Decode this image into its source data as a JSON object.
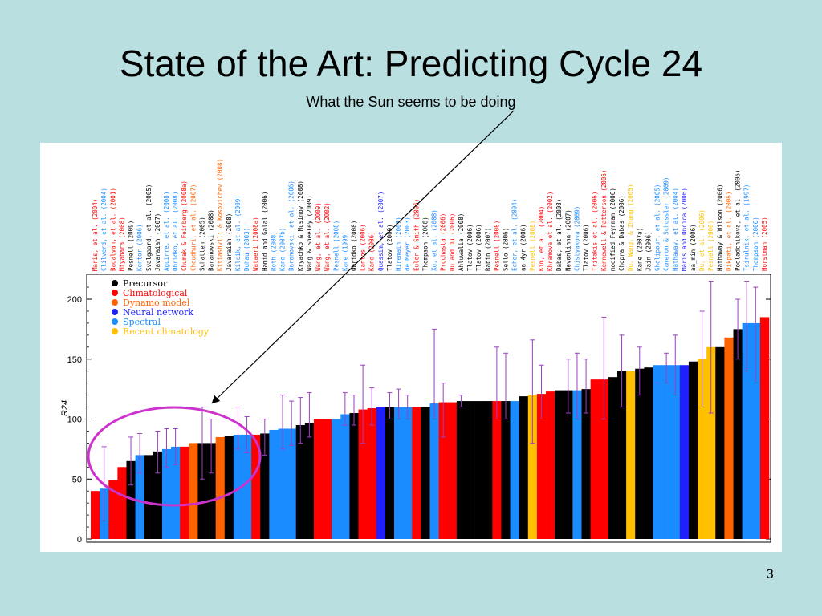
{
  "slide": {
    "title": "State of the Art: Predicting Cycle 24",
    "subtitle": "What the Sun seems to be doing",
    "page_number": "3"
  },
  "colors": {
    "background": "#b9dfe1",
    "Precursor": "#000000",
    "Climatological": "#ff0000",
    "Dynamo model": "#ff6200",
    "Neural network": "#2020ff",
    "Spectral": "#1a8cff",
    "Recent climatology": "#ffc000",
    "error_bar": "#9a40c0",
    "highlight_ellipse": "#cc33cc",
    "arrow": "#000000"
  },
  "chart_data": {
    "type": "bar",
    "ylabel": "R24",
    "ylim": [
      0,
      220
    ],
    "yticks": [
      0,
      50,
      100,
      150,
      200
    ],
    "legend": {
      "placement": "top-left",
      "entries": [
        "Precursor",
        "Climatological",
        "Dynamo model",
        "Neural network",
        "Spectral",
        "Recent climatology"
      ]
    },
    "categories": [
      "Maris, et al. (2004)",
      "Clilverd, et al. (2004)",
      "Badalyan, et al. (2001)",
      "Miyahara (2008)",
      "Pesnell (2009)",
      "Kontor (2006)",
      "Svalgaard, et al. (2005)",
      "Javaraiah (2007)",
      "Aguirre, et al. (2008)",
      "Obridko, et al. (2008)",
      "Chumak & Feinberg (2008a)",
      "Choudhuri, et al. (2007)",
      "Schatten (2005)",
      "Baranovski (2008)",
      "Kitiashvili & Kosovichev (2008)",
      "Javaraiah (2008)",
      "Kilcik, et al. (2009)",
      "Duhau (2003)",
      "Wataeri (2008a)",
      "Hamid and Galal (2006)",
      "Roth (2008)",
      "Kane (2007b)",
      "Baranovski, et al. (2006)",
      "Kryachko & Nusinov (2008)",
      "Wang & Sheeley (2009)",
      "Wang, et al. (2009)",
      "Wang, et al. (2002)",
      "Pesnell (2008)",
      "Kane (1999)",
      "Obridko (2008)",
      "Lantos (2006)",
      "Kane (2006)",
      "Quassim, et al. (2007)",
      "Tlatov (2009)",
      "Hiremath (2007)",
      "de Meyer (2003)",
      "Euler & Smith (2006)",
      "Thompson (2008)",
      "Xu, et al. (2008)",
      "Prochasta (2006)",
      "Du and Du (2006)",
      "Ahluwalia (2008)",
      "Tlatov (2006)",
      "Tlatov (2006)",
      "Rabin (2007)",
      "Pesnell (2008)",
      "Sello (2006)",
      "Echer, et al. (2004)",
      "aa_4yr (2006)",
      "Pesnell (2008)",
      "Kim, et al. (2004)",
      "Khramova et al. (2002)",
      "Dabas, et al. (2008)",
      "Nevanlinna (2007)",
      "Chistyakova (2009)",
      "Tlatov (2006)",
      "Tritakis et al. (2006)",
      "Kennewell & Patterson (2006)",
      "modified Feynman (2006)",
      "Chopra & Dabas (2006)",
      "Du, Wang, & Zhang (2005)",
      "Kane (2007a)",
      "Jain (2006)",
      "Gholipour, et al. (2005)",
      "Cameron & Schussler (2009)",
      "Hathaway, et al. (2004)",
      "Maris and Oncica (2006)",
      "aa_min (2006)",
      "Du, et al. (2006)",
      "Pesnell (2006)",
      "Hathaway & Wilson (2006)",
      "Dikpati, et al. (2006)",
      "Podladchikova, et al. (2006)",
      "Tsirulnik, et al. (1997)",
      "Thompson (2006)",
      "Horstman (2005)"
    ],
    "methods": [
      "Climatological",
      "Spectral",
      "Climatological",
      "Climatological",
      "Precursor",
      "Spectral",
      "Precursor",
      "Precursor",
      "Spectral",
      "Spectral",
      "Climatological",
      "Dynamo model",
      "Precursor",
      "Precursor",
      "Dynamo model",
      "Precursor",
      "Spectral",
      "Spectral",
      "Climatological",
      "Precursor",
      "Spectral",
      "Spectral",
      "Spectral",
      "Precursor",
      "Precursor",
      "Climatological",
      "Climatological",
      "Spectral",
      "Spectral",
      "Precursor",
      "Climatological",
      "Climatological",
      "Neural network",
      "Precursor",
      "Spectral",
      "Spectral",
      "Climatological",
      "Precursor",
      "Spectral",
      "Climatological",
      "Climatological",
      "Precursor",
      "Precursor",
      "Precursor",
      "Precursor",
      "Climatological",
      "Precursor",
      "Spectral",
      "Precursor",
      "Recent climatology",
      "Climatological",
      "Climatological",
      "Precursor",
      "Precursor",
      "Spectral",
      "Precursor",
      "Climatological",
      "Climatological",
      "Precursor",
      "Precursor",
      "Recent climatology",
      "Precursor",
      "Precursor",
      "Spectral",
      "Spectral",
      "Spectral",
      "Neural network",
      "Precursor",
      "Recent climatology",
      "Recent climatology",
      "Precursor",
      "Dynamo model",
      "Precursor",
      "Spectral",
      "Spectral",
      "Climatological"
    ],
    "values": [
      40,
      42,
      49,
      60,
      65,
      70,
      70,
      73,
      75,
      77,
      77,
      80,
      80,
      80,
      85,
      86,
      87,
      87,
      87,
      88,
      91,
      92,
      92,
      95,
      97,
      100,
      100,
      100,
      104,
      105,
      108,
      109,
      110,
      110,
      110,
      110,
      110,
      110,
      113,
      114,
      114,
      115,
      115,
      115,
      115,
      115,
      115,
      115,
      119,
      120,
      121,
      123,
      124,
      124,
      124,
      125,
      133,
      133,
      135,
      140,
      140,
      142,
      143,
      145,
      145,
      145,
      145,
      148,
      150,
      160,
      160,
      168,
      175,
      180,
      180,
      185
    ],
    "error_low": [
      null,
      15,
      null,
      null,
      45,
      55,
      null,
      55,
      60,
      62,
      null,
      null,
      50,
      55,
      null,
      null,
      75,
      72,
      null,
      70,
      null,
      75,
      78,
      80,
      85,
      null,
      null,
      null,
      95,
      95,
      80,
      95,
      null,
      100,
      100,
      100,
      null,
      null,
      100,
      85,
      null,
      110,
      null,
      null,
      null,
      100,
      100,
      null,
      null,
      80,
      100,
      null,
      null,
      105,
      100,
      105,
      null,
      100,
      null,
      110,
      null,
      120,
      null,
      null,
      130,
      120,
      null,
      null,
      110,
      105,
      null,
      null,
      150,
      140,
      130,
      null
    ],
    "error_high": [
      null,
      77,
      null,
      null,
      85,
      88,
      null,
      90,
      92,
      92,
      null,
      null,
      110,
      100,
      null,
      null,
      110,
      102,
      null,
      100,
      null,
      120,
      115,
      118,
      122,
      null,
      null,
      null,
      122,
      120,
      145,
      126,
      null,
      122,
      125,
      120,
      null,
      null,
      175,
      130,
      null,
      120,
      null,
      null,
      null,
      160,
      155,
      null,
      null,
      166,
      145,
      null,
      null,
      150,
      155,
      150,
      null,
      185,
      null,
      170,
      null,
      160,
      null,
      null,
      155,
      170,
      null,
      null,
      190,
      215,
      null,
      null,
      200,
      215,
      210,
      null
    ]
  }
}
